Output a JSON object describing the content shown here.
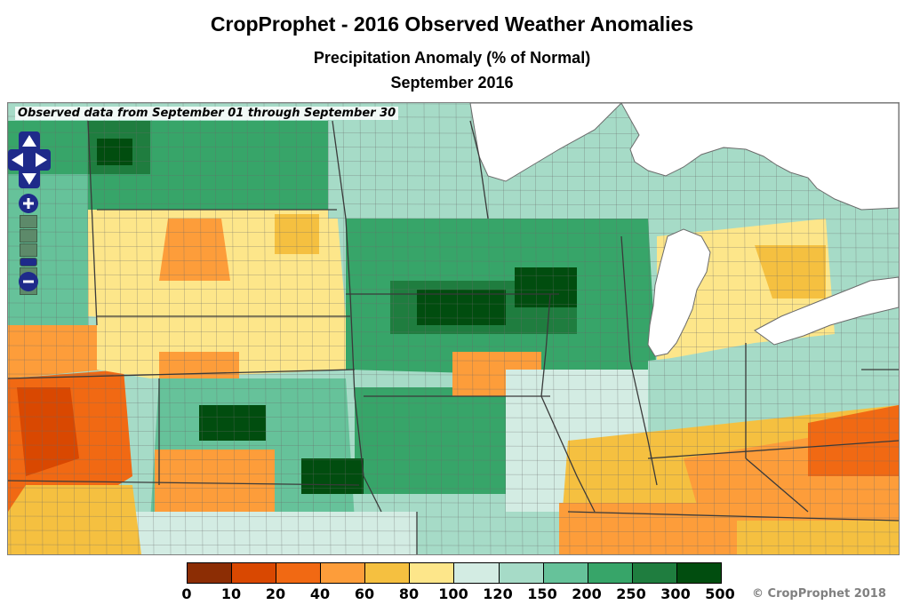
{
  "header": {
    "title": "CropProphet - 2016 Observed Weather Anomalies",
    "subtitle": "Precipitation Anomaly (% of Normal)",
    "period": "September 2016"
  },
  "map": {
    "observation_note": "Observed data from September 01 through September 30",
    "region": "US Midwest / Corn Belt counties"
  },
  "controls": {
    "pan_up": "pan-up",
    "pan_down": "pan-down",
    "pan_left": "pan-left",
    "pan_right": "pan-right",
    "zoom_in_icon": "plus-icon",
    "zoom_out_icon": "minus-icon",
    "zoom_levels": 6
  },
  "legend": {
    "ticks": [
      "0",
      "10",
      "20",
      "40",
      "60",
      "80",
      "100",
      "120",
      "150",
      "200",
      "250",
      "300",
      "500"
    ],
    "colors": [
      "#8c2d04",
      "#d94801",
      "#f16913",
      "#fd9d3a",
      "#f5c040",
      "#fde68a",
      "#d3ece3",
      "#a6dbc7",
      "#66c29a",
      "#37a569",
      "#1f7d3f",
      "#014d0f"
    ]
  },
  "copyright": "© CropProphet 2018",
  "colors": {
    "water": "#ffffff",
    "borders": "#6b6b6b",
    "state_lines": "#3a3a3a",
    "nav": "#1e2a8a"
  }
}
